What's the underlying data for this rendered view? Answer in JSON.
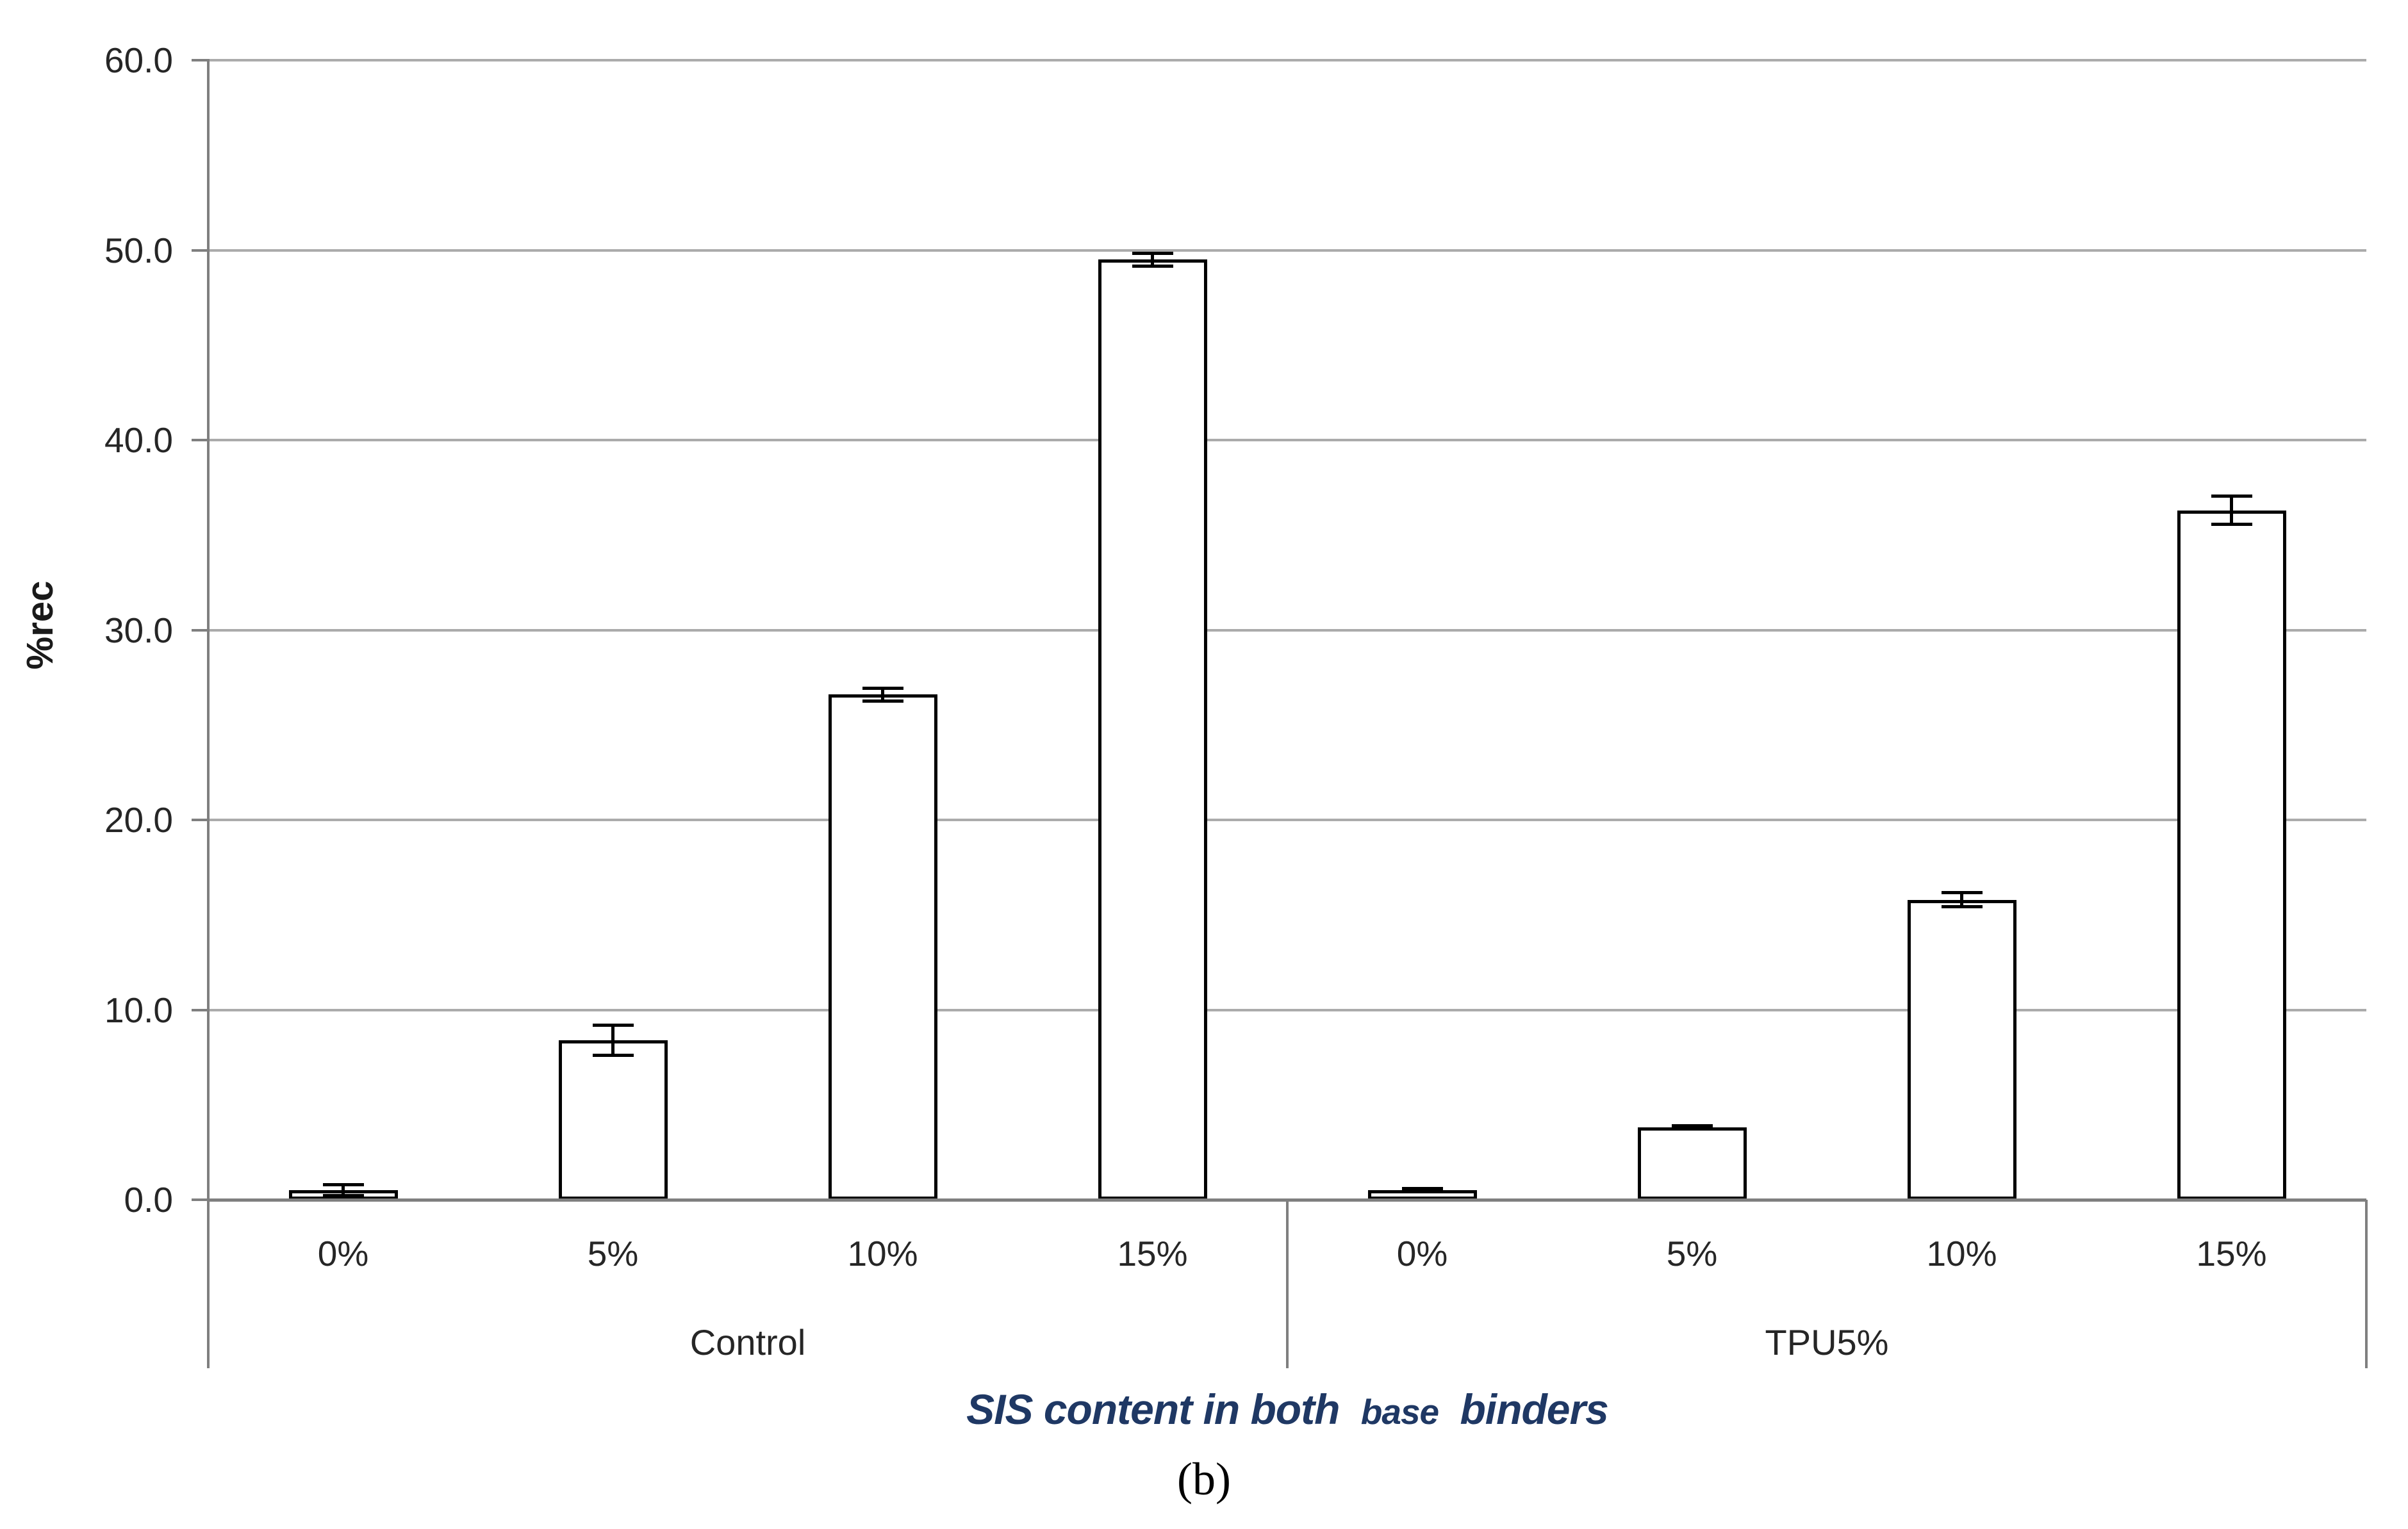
{
  "figure": {
    "caption": "(b)",
    "background_color": "#FFFFFF"
  },
  "chart_data": {
    "type": "bar",
    "title": "",
    "ylabel": "%rec",
    "xlabel": "SIS content in both base binders",
    "xlabel_parts": {
      "part1": "SIS content in both",
      "part2_small": "base",
      "part3": "binders"
    },
    "ylim": [
      0,
      60
    ],
    "ytick_step": 10,
    "ytick_labels": [
      "0.0",
      "10.0",
      "20.0",
      "30.0",
      "40.0",
      "50.0",
      "60.0"
    ],
    "grid": true,
    "legend": "none",
    "bar_fill": "#FFFFFF",
    "bar_border": "#000000",
    "error_bar_color": "#000000",
    "groups": [
      {
        "label": "Control",
        "categories": [
          "0%",
          "5%",
          "10%",
          "15%"
        ],
        "values": [
          0.5,
          8.4,
          26.6,
          49.5
        ],
        "errors": [
          0.3,
          0.8,
          0.35,
          0.35
        ]
      },
      {
        "label": "TPU5%",
        "categories": [
          "0%",
          "5%",
          "10%",
          "15%"
        ],
        "values": [
          0.5,
          3.8,
          15.8,
          36.3
        ],
        "errors": [
          0.1,
          0.1,
          0.4,
          0.75
        ]
      }
    ],
    "colors": {
      "axis_title": "#1F3864",
      "gridline": "#ABABAB",
      "axis_line": "#7F7F7F",
      "tick_label": "#262626",
      "caption": "#000000"
    }
  }
}
